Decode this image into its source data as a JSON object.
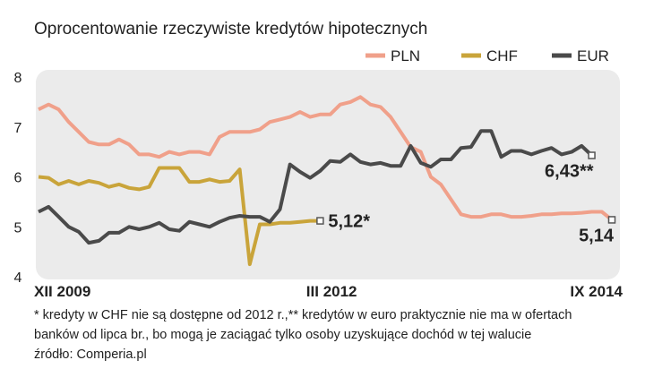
{
  "chart_data": {
    "type": "line",
    "title": "Oprocentowanie rzeczywiste kredytów hipotecznych",
    "categories": [
      "XII 2009",
      null,
      null,
      null,
      null,
      null,
      null,
      null,
      null,
      null,
      null,
      null,
      null,
      null,
      null,
      null,
      null,
      null,
      null,
      null,
      null,
      null,
      null,
      null,
      null,
      null,
      null,
      "III 2012",
      null,
      null,
      null,
      null,
      null,
      null,
      null,
      null,
      null,
      null,
      null,
      null,
      null,
      null,
      null,
      null,
      null,
      null,
      null,
      null,
      null,
      null,
      null,
      null,
      null,
      null,
      null,
      null,
      null,
      "IX 2014"
    ],
    "ylim": [
      4,
      8
    ],
    "yticks": [
      4,
      5,
      6,
      7,
      8
    ],
    "legend": "top-right",
    "series": [
      {
        "name": "PLN",
        "color": "#f0a08a",
        "values": [
          7.35,
          7.45,
          7.35,
          7.1,
          6.9,
          6.7,
          6.65,
          6.65,
          6.75,
          6.65,
          6.45,
          6.45,
          6.4,
          6.5,
          6.45,
          6.5,
          6.5,
          6.45,
          6.8,
          6.9,
          6.9,
          6.9,
          6.95,
          7.1,
          7.15,
          7.2,
          7.3,
          7.2,
          7.25,
          7.25,
          7.45,
          7.5,
          7.6,
          7.45,
          7.4,
          7.2,
          6.9,
          6.6,
          6.5,
          6.0,
          5.85,
          5.55,
          5.25,
          5.2,
          5.2,
          5.25,
          5.25,
          5.2,
          5.2,
          5.22,
          5.25,
          5.25,
          5.27,
          5.27,
          5.28,
          5.3,
          5.3,
          5.14
        ],
        "value_labels": {
          "57": "5,14"
        }
      },
      {
        "name": "CHF",
        "color": "#c9a43a",
        "values": [
          6.0,
          5.98,
          5.85,
          5.92,
          5.85,
          5.92,
          5.88,
          5.8,
          5.85,
          5.78,
          5.75,
          5.8,
          6.18,
          6.18,
          6.18,
          5.9,
          5.9,
          5.95,
          5.9,
          5.92,
          6.15,
          4.25,
          5.05,
          5.05,
          5.08,
          5.08,
          5.1,
          5.12,
          5.12,
          null,
          null,
          null,
          null,
          null,
          null,
          null,
          null,
          null,
          null,
          null,
          null,
          null,
          null,
          null,
          null,
          null,
          null,
          null,
          null,
          null,
          null,
          null,
          null,
          null,
          null,
          null,
          null,
          null
        ],
        "value_labels": {
          "28": "5,12*"
        }
      },
      {
        "name": "EUR",
        "color": "#4a4a4a",
        "values": [
          5.3,
          5.4,
          5.2,
          5.0,
          4.9,
          4.68,
          4.72,
          4.88,
          4.88,
          5.0,
          4.95,
          5.0,
          5.08,
          4.95,
          4.92,
          5.1,
          5.05,
          5.0,
          5.1,
          5.18,
          5.22,
          5.2,
          5.2,
          5.1,
          5.35,
          6.25,
          6.1,
          5.98,
          6.12,
          6.32,
          6.3,
          6.45,
          6.3,
          6.25,
          6.28,
          6.22,
          6.22,
          6.62,
          6.28,
          6.2,
          6.35,
          6.35,
          6.58,
          6.6,
          6.92,
          6.92,
          6.4,
          6.52,
          6.52,
          6.45,
          6.52,
          6.58,
          6.45,
          6.5,
          6.62,
          6.43,
          null,
          null
        ],
        "value_labels": {
          "55": "6,43**"
        }
      }
    ],
    "notes": [
      "* kredyty w CHF nie są dostępne od 2012 r.,** kredytów w euro praktycznie nie ma w ofertach",
      "banków od lipca br., bo mogą je zaciągać tylko osoby uzyskujące dochód w tej walucie",
      "źródło: Comperia.pl"
    ]
  }
}
